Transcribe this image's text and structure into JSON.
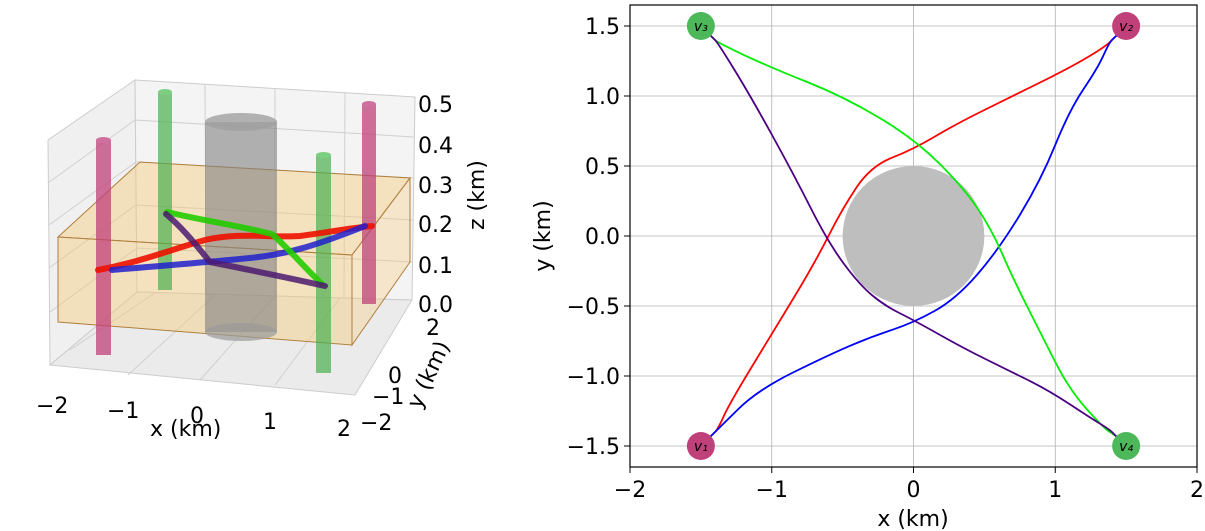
{
  "chart_data": [
    {
      "type": "line",
      "panel": "3d",
      "xlabel": "x (km)",
      "ylabel": "y (km)",
      "zlabel": "z (km)",
      "xlim": [
        -2,
        2
      ],
      "ylim": [
        -2,
        2
      ],
      "zlim": [
        0,
        0.5
      ],
      "x_ticks": [
        "−2",
        "−1",
        "0",
        "1",
        "2"
      ],
      "y_ticks": [
        "−2",
        "−1",
        "0",
        "2"
      ],
      "z_ticks": [
        "0.0",
        "0.1",
        "0.2",
        "0.3",
        "0.4",
        "0.5"
      ],
      "grid": true,
      "slab": {
        "color": "#f5c97a",
        "z_range": [
          0.1,
          0.3
        ]
      },
      "obstacle": {
        "color": "#808080",
        "center": [
          0,
          0
        ],
        "radius": 0.5,
        "height": 0.5
      },
      "poles": [
        {
          "xy": [
            -1.5,
            -1.5
          ],
          "color": "#c0407a"
        },
        {
          "xy": [
            1.5,
            1.5
          ],
          "color": "#c0407a"
        },
        {
          "xy": [
            -1.5,
            1.5
          ],
          "color": "#4caf50"
        },
        {
          "xy": [
            1.5,
            -1.5
          ],
          "color": "#4caf50"
        }
      ],
      "series": [
        {
          "color": "#ff0000",
          "z": 0.2
        },
        {
          "color": "#0000ff",
          "z": 0.2
        },
        {
          "color": "#00dd00",
          "z": 0.2
        },
        {
          "color": "#4b0082",
          "z": 0.2
        }
      ]
    },
    {
      "type": "line",
      "panel": "2d",
      "xlabel": "x (km)",
      "ylabel": "y (km)",
      "xlim": [
        -2,
        2
      ],
      "ylim": [
        -1.65,
        1.65
      ],
      "x_ticks": [
        -2,
        -1,
        0,
        1,
        2
      ],
      "x_tick_labels": [
        "−2",
        "−1",
        "0",
        "1",
        "2"
      ],
      "y_ticks": [
        -1.5,
        -1.0,
        -0.5,
        0.0,
        0.5,
        1.0,
        1.5
      ],
      "y_tick_labels": [
        "−1.5",
        "−1.0",
        "−0.5",
        "0.0",
        "0.5",
        "1.0",
        "1.5"
      ],
      "grid": true,
      "obstacle": {
        "center": [
          0,
          0
        ],
        "radius": 0.5,
        "color": "#bebebe"
      },
      "nodes": [
        {
          "label": "v₁",
          "x": -1.5,
          "y": -1.5,
          "color": "#c0407a"
        },
        {
          "label": "v₂",
          "x": 1.5,
          "y": 1.5,
          "color": "#c0407a"
        },
        {
          "label": "v₃",
          "x": -1.5,
          "y": 1.5,
          "color": "#4cb85a"
        },
        {
          "label": "v₄",
          "x": 1.5,
          "y": -1.5,
          "color": "#4cb85a"
        }
      ],
      "series": [
        {
          "color": "#ff0000",
          "x": [
            -1.5,
            -1.42,
            -1.38,
            -1.3,
            -1.0,
            -0.7,
            -0.5,
            -0.3,
            0.0,
            0.3,
            0.7,
            1.1,
            1.35,
            1.42,
            1.5
          ],
          "y": [
            -1.5,
            -1.42,
            -1.38,
            -1.2,
            -0.7,
            -0.2,
            0.2,
            0.5,
            0.62,
            0.8,
            1.0,
            1.2,
            1.35,
            1.42,
            1.5
          ]
        },
        {
          "color": "#0000ff",
          "x": [
            -1.5,
            -1.42,
            -1.38,
            -1.1,
            -0.6,
            -0.3,
            0.0,
            0.3,
            0.6,
            0.9,
            1.1,
            1.3,
            1.38,
            1.42,
            1.5
          ],
          "y": [
            -1.5,
            -1.42,
            -1.38,
            -1.1,
            -0.85,
            -0.72,
            -0.62,
            -0.45,
            -0.1,
            0.4,
            0.9,
            1.2,
            1.38,
            1.42,
            1.5
          ]
        },
        {
          "color": "#00ee00",
          "x": [
            -1.5,
            -1.42,
            -1.38,
            -1.0,
            -0.5,
            0.0,
            0.35,
            0.55,
            0.7,
            0.9,
            1.1,
            1.35,
            1.42,
            1.5
          ],
          "y": [
            1.5,
            1.42,
            1.38,
            1.2,
            1.0,
            0.7,
            0.35,
            0.05,
            -0.3,
            -0.7,
            -1.1,
            -1.38,
            -1.42,
            -1.5
          ]
        },
        {
          "color": "#4b0082",
          "x": [
            -1.5,
            -1.42,
            -1.38,
            -1.15,
            -0.85,
            -0.6,
            -0.38,
            -0.2,
            0.0,
            0.35,
            0.65,
            0.95,
            1.25,
            1.38,
            1.42,
            1.5
          ],
          "y": [
            1.5,
            1.42,
            1.38,
            1.0,
            0.45,
            -0.05,
            -0.35,
            -0.5,
            -0.6,
            -0.8,
            -0.95,
            -1.1,
            -1.3,
            -1.38,
            -1.42,
            -1.5
          ]
        }
      ]
    }
  ]
}
